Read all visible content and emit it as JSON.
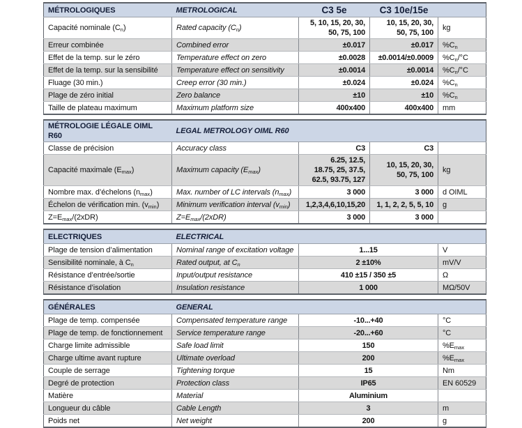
{
  "colors": {
    "section_header_bg": "#ccd6e6",
    "alt_row_bg": "#d9d9d9",
    "header_text": "#141e38",
    "body_text": "#121212"
  },
  "sections": [
    {
      "id": "metrological",
      "title_fr": "MÉTROLOGIQUES",
      "title_en": "METROLOGICAL",
      "layout": "split",
      "col_headers": [
        "C3 5e",
        "C3 10e/15e"
      ],
      "rows": [
        {
          "fr": "Capacité nominale (C~n~)",
          "en": "Rated capacity (C~n~)",
          "v1": "5, 10, 15, 20, 30,\n50, 75, 100",
          "v2": "10, 15, 20, 30,\n50, 75, 100",
          "unit": "kg"
        },
        {
          "fr": "Erreur combinée",
          "en": "Combined error",
          "v1": "±0.017",
          "v2": "±0.017",
          "unit": "%C~n~"
        },
        {
          "fr": "Effet de la temp. sur le zéro",
          "en": "Temperature effect on zero",
          "v1": "±0.0028",
          "v2": "±0.0014/±0.0009",
          "unit": "%C~n~/°C"
        },
        {
          "fr": "Effet de la temp. sur la sensibilité",
          "en": "Temperature effect on sensitivity",
          "v1": "±0.0014",
          "v2": "±0.0014",
          "unit": "%C~n~/°C"
        },
        {
          "fr": "Fluage (30 min.)",
          "en": "Creep error (30 min.)",
          "v1": "±0.024",
          "v2": "±0.024",
          "unit": "%C~n~"
        },
        {
          "fr": "Plage de zéro initial",
          "en": "Zero balance",
          "v1": "±10",
          "v2": "±10",
          "unit": "%C~n~"
        },
        {
          "fr": "Taille de plateau maximum",
          "en": "Maximum platform size",
          "v1": "400x400",
          "v2": "400x400",
          "unit": "mm"
        }
      ]
    },
    {
      "id": "legal-metrology",
      "title_fr": "MÉTROLOGIE LÉGALE OIML R60",
      "title_en": "LEGAL METROLOGY OIML R60",
      "layout": "split",
      "rows": [
        {
          "fr": "Classe de précision",
          "en": "Accuracy class",
          "v1": "C3",
          "v2": "C3",
          "unit": ""
        },
        {
          "fr": "Capacité maximale (E~max~)",
          "en": "Maximum capacity (E~max~)",
          "v1": "6.25, 12.5,\n18.75, 25, 37.5,\n62.5, 93.75, 127",
          "v2": "10, 15, 20, 30,\n50, 75, 100",
          "unit": "kg"
        },
        {
          "fr": "Nombre max. d’échelons (n~max~)",
          "en": "Max. number of LC intervals (n~max~)",
          "v1": "3 000",
          "v2": "3 000",
          "unit": "d OIML"
        },
        {
          "fr": "Échelon de vérification min. (v~min~)",
          "en": "Minimum verification interval (v~min~)",
          "v1": "1,2,3,4,6,10,15,20",
          "v2": "1, 1, 2, 2, 5, 5, 10",
          "unit": "g"
        },
        {
          "fr": "Z=E~max~/(2xDR)",
          "en": "Z=E~max~/(2xDR)",
          "v1": "3 000",
          "v2": "3 000",
          "unit": ""
        }
      ]
    },
    {
      "id": "electrical",
      "title_fr": "ELECTRIQUES",
      "title_en": "ELECTRICAL",
      "layout": "merged",
      "rows": [
        {
          "fr": "Plage de tension d’alimentation",
          "en": "Nominal range of excitation voltage",
          "value": "1...15",
          "unit": "V"
        },
        {
          "fr": "Sensibilité nominale, à C~n~",
          "en": "Rated output, at C~n~",
          "value": "2 ±10%",
          "unit": "mV/V"
        },
        {
          "fr": "Résistance d’entrée/sortie",
          "en": "Input/output resistance",
          "value": "410 ±15 / 350 ±5",
          "unit": "Ω"
        },
        {
          "fr": "Résistance d’isolation",
          "en": "Insulation resistance",
          "value": "1 000",
          "unit": "MΩ/50V"
        }
      ]
    },
    {
      "id": "general",
      "title_fr": "GÉNÉRALES",
      "title_en": "GENERAL",
      "layout": "merged",
      "rows": [
        {
          "fr": "Plage de temp. compensée",
          "en": "Compensated temperature range",
          "value": "-10...+40",
          "unit": "°C"
        },
        {
          "fr": "Plage de temp. de fonctionnement",
          "en": "Service temperature range",
          "value": "-20...+60",
          "unit": "°C"
        },
        {
          "fr": "Charge limite admissible",
          "en": "Safe load limit",
          "value": "150",
          "unit": "%E~max~"
        },
        {
          "fr": "Charge ultime avant rupture",
          "en": "Ultimate overload",
          "value": "200",
          "unit": "%E~max~"
        },
        {
          "fr": "Couple de serrage",
          "en": "Tightening torque",
          "value": "15",
          "unit": "Nm"
        },
        {
          "fr": "Degré de protection",
          "en": "Protection class",
          "value": "IP65",
          "unit": "EN 60529"
        },
        {
          "fr": "Matière",
          "en": "Material",
          "value": "Aluminium",
          "unit": ""
        },
        {
          "fr": "Longueur du câble",
          "en": "Cable Length",
          "value": "3",
          "unit": "m"
        },
        {
          "fr": "Poids net",
          "en": "Net weight",
          "value": "200",
          "unit": "g"
        }
      ]
    }
  ]
}
